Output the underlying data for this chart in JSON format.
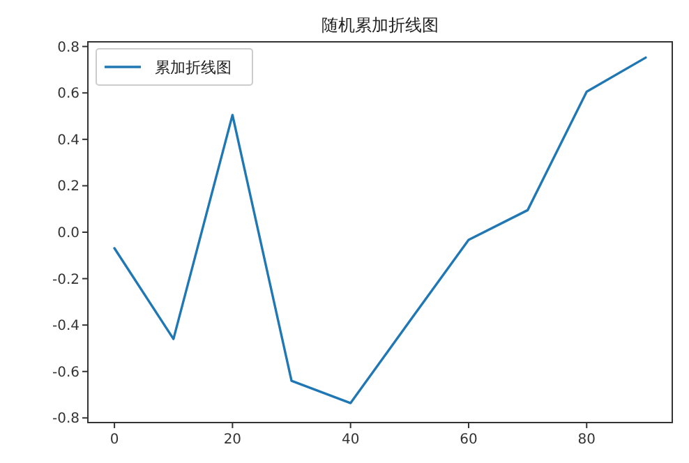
{
  "chart_data": {
    "type": "line",
    "title": "随机累加折线图",
    "x": [
      0,
      10,
      20,
      30,
      40,
      50,
      60,
      70,
      80,
      90
    ],
    "series": [
      {
        "name": "累加折线图",
        "color": "#1f77b4",
        "values": [
          -0.069,
          -0.46,
          0.505,
          -0.64,
          -0.736,
          -0.384,
          -0.033,
          0.095,
          0.605,
          0.752
        ]
      }
    ],
    "xlim": [
      -4.5,
      94.5
    ],
    "xticks": [
      0,
      20,
      40,
      60,
      80
    ],
    "ylim": [
      -0.82,
      0.82
    ],
    "yticks": [
      {
        "value": -0.8,
        "label": "-0.8"
      },
      {
        "value": -0.6,
        "label": "-0.6"
      },
      {
        "value": -0.4,
        "label": "-0.4"
      },
      {
        "value": -0.2,
        "label": "-0.2"
      },
      {
        "value": 0,
        "label": "0.0"
      },
      {
        "value": 0.2,
        "label": "0.2"
      },
      {
        "value": 0.4,
        "label": "0.4"
      },
      {
        "value": 0.6,
        "label": "0.6"
      },
      {
        "value": 0.8,
        "label": "0.8"
      }
    ],
    "grid": false,
    "legend": "top left",
    "marker": "none",
    "line_style": "solid"
  }
}
